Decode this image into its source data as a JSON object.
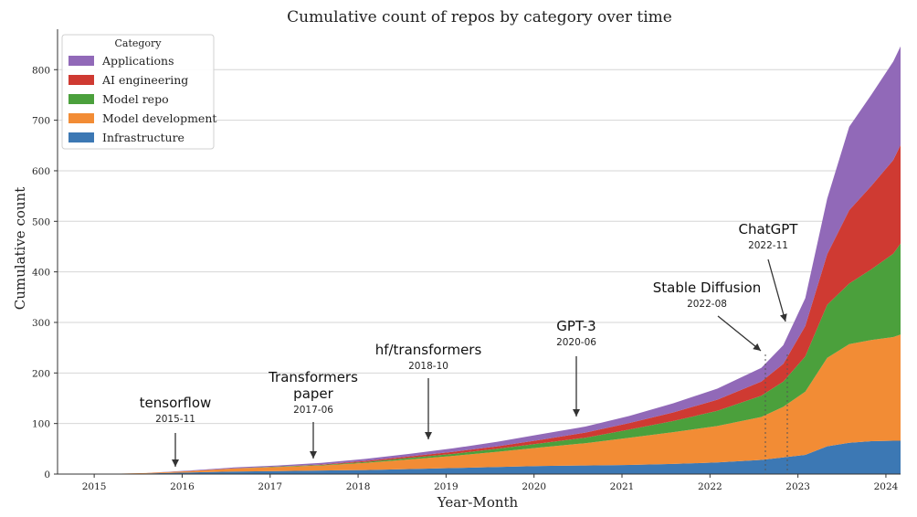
{
  "chart_data": {
    "type": "area",
    "title": "Cumulative count of repos by category over time",
    "xlabel": "Year-Month",
    "ylabel": "Cumulative count",
    "stacked": true,
    "grid": "horizontal",
    "legend_title": "Category",
    "legend_position": "top-left",
    "xlim": [
      "2014-08",
      "2024-03"
    ],
    "ylim": [
      0,
      880
    ],
    "x_ticks": [
      "2015",
      "2016",
      "2017",
      "2018",
      "2019",
      "2020",
      "2021",
      "2022",
      "2023",
      "2024"
    ],
    "y_ticks": [
      0,
      100,
      200,
      300,
      400,
      500,
      600,
      700,
      800
    ],
    "x": [
      "2014-08",
      "2015-02",
      "2015-08",
      "2016-02",
      "2016-08",
      "2017-02",
      "2017-08",
      "2018-02",
      "2018-08",
      "2019-02",
      "2019-08",
      "2020-02",
      "2020-08",
      "2021-02",
      "2021-08",
      "2022-02",
      "2022-08",
      "2022-11",
      "2023-02",
      "2023-05",
      "2023-08",
      "2023-11",
      "2024-02",
      "2024-03"
    ],
    "series": [
      {
        "name": "Infrastructure",
        "color": "#3c78b4",
        "values": [
          0,
          0,
          1,
          3,
          5,
          6,
          7,
          8,
          10,
          12,
          14,
          16,
          17,
          18,
          20,
          23,
          28,
          33,
          38,
          55,
          62,
          65,
          66,
          66
        ]
      },
      {
        "name": "Model development",
        "color": "#f28c35",
        "values": [
          0,
          0,
          1,
          3,
          6,
          8,
          10,
          14,
          19,
          24,
          30,
          37,
          44,
          54,
          63,
          72,
          85,
          100,
          125,
          175,
          195,
          200,
          205,
          210
        ]
      },
      {
        "name": "Model repo",
        "color": "#4ba03c",
        "values": [
          0,
          0,
          0,
          0,
          0,
          1,
          1,
          2,
          3,
          4,
          6,
          8,
          11,
          16,
          22,
          30,
          42,
          50,
          70,
          105,
          120,
          140,
          165,
          180
        ]
      },
      {
        "name": "AI engineering",
        "color": "#cf3a32",
        "values": [
          0,
          0,
          0,
          0,
          0,
          0,
          1,
          2,
          3,
          4,
          5,
          7,
          10,
          13,
          17,
          22,
          28,
          35,
          60,
          100,
          145,
          165,
          185,
          195
        ]
      },
      {
        "name": "Applications",
        "color": "#9169b8",
        "values": [
          0,
          0,
          0,
          1,
          2,
          2,
          3,
          4,
          5,
          7,
          9,
          11,
          12,
          14,
          18,
          22,
          27,
          37,
          55,
          110,
          165,
          180,
          195,
          195
        ]
      }
    ],
    "annotations": [
      {
        "label": "tensorflow",
        "date": "2015-11"
      },
      {
        "label": "Transformers paper",
        "date": "2017-06"
      },
      {
        "label": "hf/transformers",
        "date": "2018-10"
      },
      {
        "label": "GPT-3",
        "date": "2020-06"
      },
      {
        "label": "Stable Diffusion",
        "date": "2022-08"
      },
      {
        "label": "ChatGPT",
        "date": "2022-11"
      }
    ]
  }
}
